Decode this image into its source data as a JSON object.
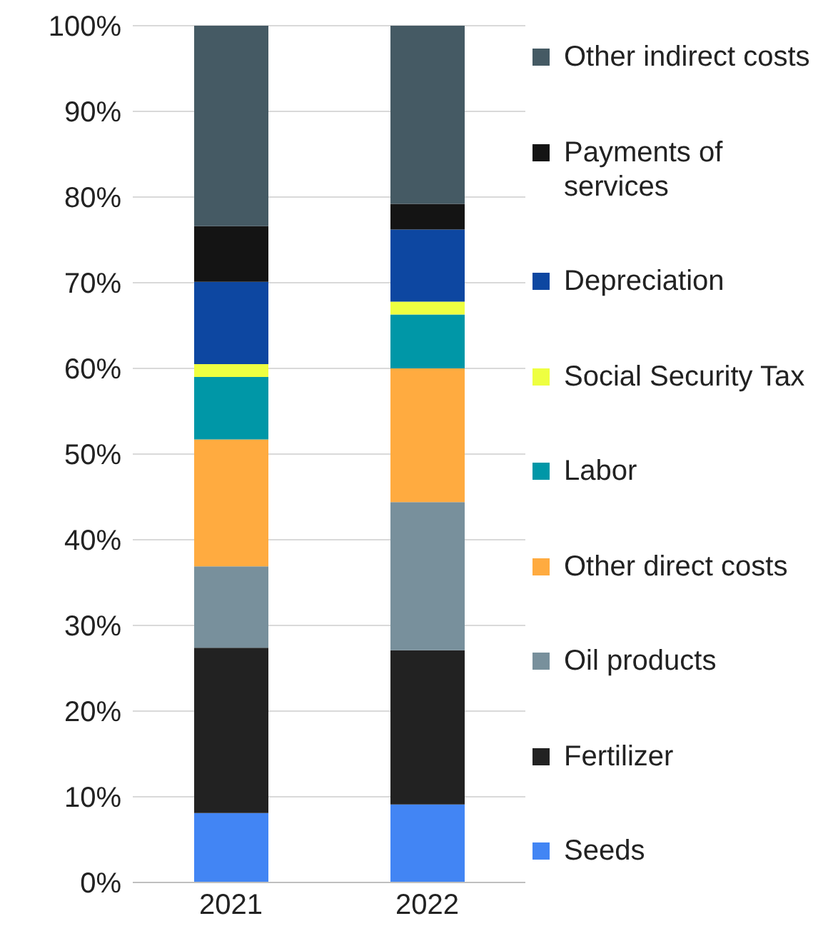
{
  "chart_data": {
    "type": "bar",
    "stacked": true,
    "categories": [
      "2021",
      "2022"
    ],
    "series": [
      {
        "name": "Seeds",
        "color": "#4285f4",
        "values": [
          8.1,
          9.1
        ]
      },
      {
        "name": "Fertilizer",
        "color": "#222222",
        "values": [
          19.3,
          18.0
        ]
      },
      {
        "name": "Oil products",
        "color": "#78909c",
        "values": [
          9.5,
          17.3
        ]
      },
      {
        "name": "Other direct costs",
        "color": "#ffab40",
        "values": [
          14.8,
          15.6
        ]
      },
      {
        "name": "Labor",
        "color": "#0097a7",
        "values": [
          7.3,
          6.3
        ]
      },
      {
        "name": "Social Security Tax",
        "color": "#eeff41",
        "values": [
          1.5,
          1.5
        ]
      },
      {
        "name": "Depreciation",
        "color": "#0d47a1",
        "values": [
          9.6,
          8.4
        ]
      },
      {
        "name": "Payments of services",
        "color": "#141414",
        "values": [
          6.5,
          3.0
        ]
      },
      {
        "name": "Other indirect costs",
        "color": "#455a64",
        "values": [
          23.4,
          20.8
        ]
      }
    ],
    "ylim": [
      0,
      100
    ],
    "yticks": [
      {
        "value": 0,
        "label": "0%"
      },
      {
        "value": 10,
        "label": "10%"
      },
      {
        "value": 20,
        "label": "20%"
      },
      {
        "value": 30,
        "label": "30%"
      },
      {
        "value": 40,
        "label": "40%"
      },
      {
        "value": 50,
        "label": "50%"
      },
      {
        "value": 60,
        "label": "60%"
      },
      {
        "value": 70,
        "label": "70%"
      },
      {
        "value": 80,
        "label": "80%"
      },
      {
        "value": 90,
        "label": "90%"
      },
      {
        "value": 100,
        "label": "100%"
      }
    ],
    "grid": "y",
    "legend": "right"
  }
}
